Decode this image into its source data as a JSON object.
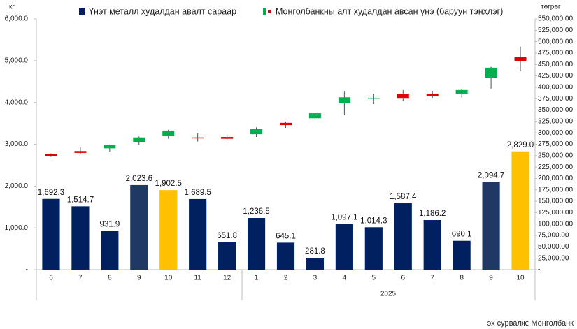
{
  "chart_data": {
    "type": "combo",
    "y_label": "кг",
    "y2_label": "төгрөг",
    "categories": [
      "6",
      "7",
      "8",
      "9",
      "10",
      "11",
      "12",
      "1",
      "2",
      "3",
      "4",
      "5",
      "6",
      "7",
      "8",
      "9",
      "10"
    ],
    "x_group_label": "2025",
    "ylim": [
      0,
      6000
    ],
    "yticks": [
      {
        "value": 0,
        "label": "-"
      },
      {
        "value": 1000,
        "label": "1,000.0"
      },
      {
        "value": 2000,
        "label": "2,000.0"
      },
      {
        "value": 3000,
        "label": "3,000.0"
      },
      {
        "value": 4000,
        "label": "4,000.0"
      },
      {
        "value": 5000,
        "label": "5,000.0"
      },
      {
        "value": 6000,
        "label": "6,000.0"
      }
    ],
    "y2lim": [
      0,
      550000
    ],
    "y2ticks": [
      {
        "value": 0,
        "label": "-"
      },
      {
        "value": 25000,
        "label": "25,000.00"
      },
      {
        "value": 50000,
        "label": "50,000.00"
      },
      {
        "value": 75000,
        "label": "75,000.00"
      },
      {
        "value": 100000,
        "label": "100,000.00"
      },
      {
        "value": 125000,
        "label": "125,000.00"
      },
      {
        "value": 150000,
        "label": "150,000.00"
      },
      {
        "value": 175000,
        "label": "175,000.00"
      },
      {
        "value": 200000,
        "label": "200,000.00"
      },
      {
        "value": 225000,
        "label": "225,000.00"
      },
      {
        "value": 250000,
        "label": "250,000.00"
      },
      {
        "value": 275000,
        "label": "275,000.00"
      },
      {
        "value": 300000,
        "label": "300,000.00"
      },
      {
        "value": 325000,
        "label": "325,000.00"
      },
      {
        "value": 350000,
        "label": "350,000.00"
      },
      {
        "value": 375000,
        "label": "375,000.00"
      },
      {
        "value": 400000,
        "label": "400,000.00"
      },
      {
        "value": 425000,
        "label": "425,000.00"
      },
      {
        "value": 450000,
        "label": "450,000.00"
      },
      {
        "value": 475000,
        "label": "475,000.00"
      },
      {
        "value": 500000,
        "label": "500,000.00"
      },
      {
        "value": 525000,
        "label": "525,000.00"
      },
      {
        "value": 550000,
        "label": "550,000.00"
      }
    ],
    "series": [
      {
        "name": "Үнэт металл худалдан авалт сараар",
        "type": "bar",
        "color": "#002060",
        "colors": [
          "#002060",
          "#002060",
          "#002060",
          "#1f3864",
          "#ffc000",
          "#002060",
          "#002060",
          "#002060",
          "#002060",
          "#002060",
          "#002060",
          "#002060",
          "#002060",
          "#002060",
          "#002060",
          "#1f3864",
          "#ffc000"
        ],
        "values": [
          1692.3,
          1514.7,
          931.9,
          2023.6,
          1902.5,
          1689.5,
          651.8,
          1236.5,
          645.1,
          281.8,
          1097.1,
          1014.3,
          1587.4,
          1186.2,
          690.1,
          2094.7,
          2829.0
        ],
        "value_labels": [
          "1,692.3",
          "1,514.7",
          "931.9",
          "2,023.6",
          "1,902.5",
          "1,689.5",
          "651.8",
          "1,236.5",
          "645.1",
          "281.8",
          "1,097.1",
          "1,014.3",
          "1,587.4",
          "1,186.2",
          "690.1",
          "2,094.7",
          "2,829.0"
        ]
      },
      {
        "name": "Монголбанкны алт худалдан авсан үнэ (баруун тэнхлэг)",
        "type": "candlestick",
        "axis": "y2",
        "up_color": "#00b050",
        "down_color": "#e00000",
        "wick_color": "#44546a",
        "open": [
          254000,
          260000,
          266000,
          279000,
          293000,
          290000,
          291000,
          297000,
          322000,
          332000,
          365000,
          375000,
          386000,
          386000,
          386000,
          421000,
          466000
        ],
        "high": [
          255000,
          268000,
          274000,
          292000,
          307000,
          299000,
          297000,
          312000,
          325000,
          345000,
          392000,
          386000,
          394000,
          392000,
          396000,
          445000,
          489000
        ],
        "low": [
          247000,
          253000,
          259000,
          274000,
          287000,
          281000,
          283000,
          291000,
          311000,
          326000,
          340000,
          363000,
          370000,
          375000,
          378000,
          397000,
          435000
        ],
        "close": [
          249000,
          256000,
          273000,
          290000,
          305000,
          289000,
          287000,
          309000,
          317000,
          343000,
          378000,
          377000,
          375000,
          380000,
          394000,
          443000,
          458000
        ]
      }
    ],
    "source": "эх сурвалж: Монголбанк"
  }
}
